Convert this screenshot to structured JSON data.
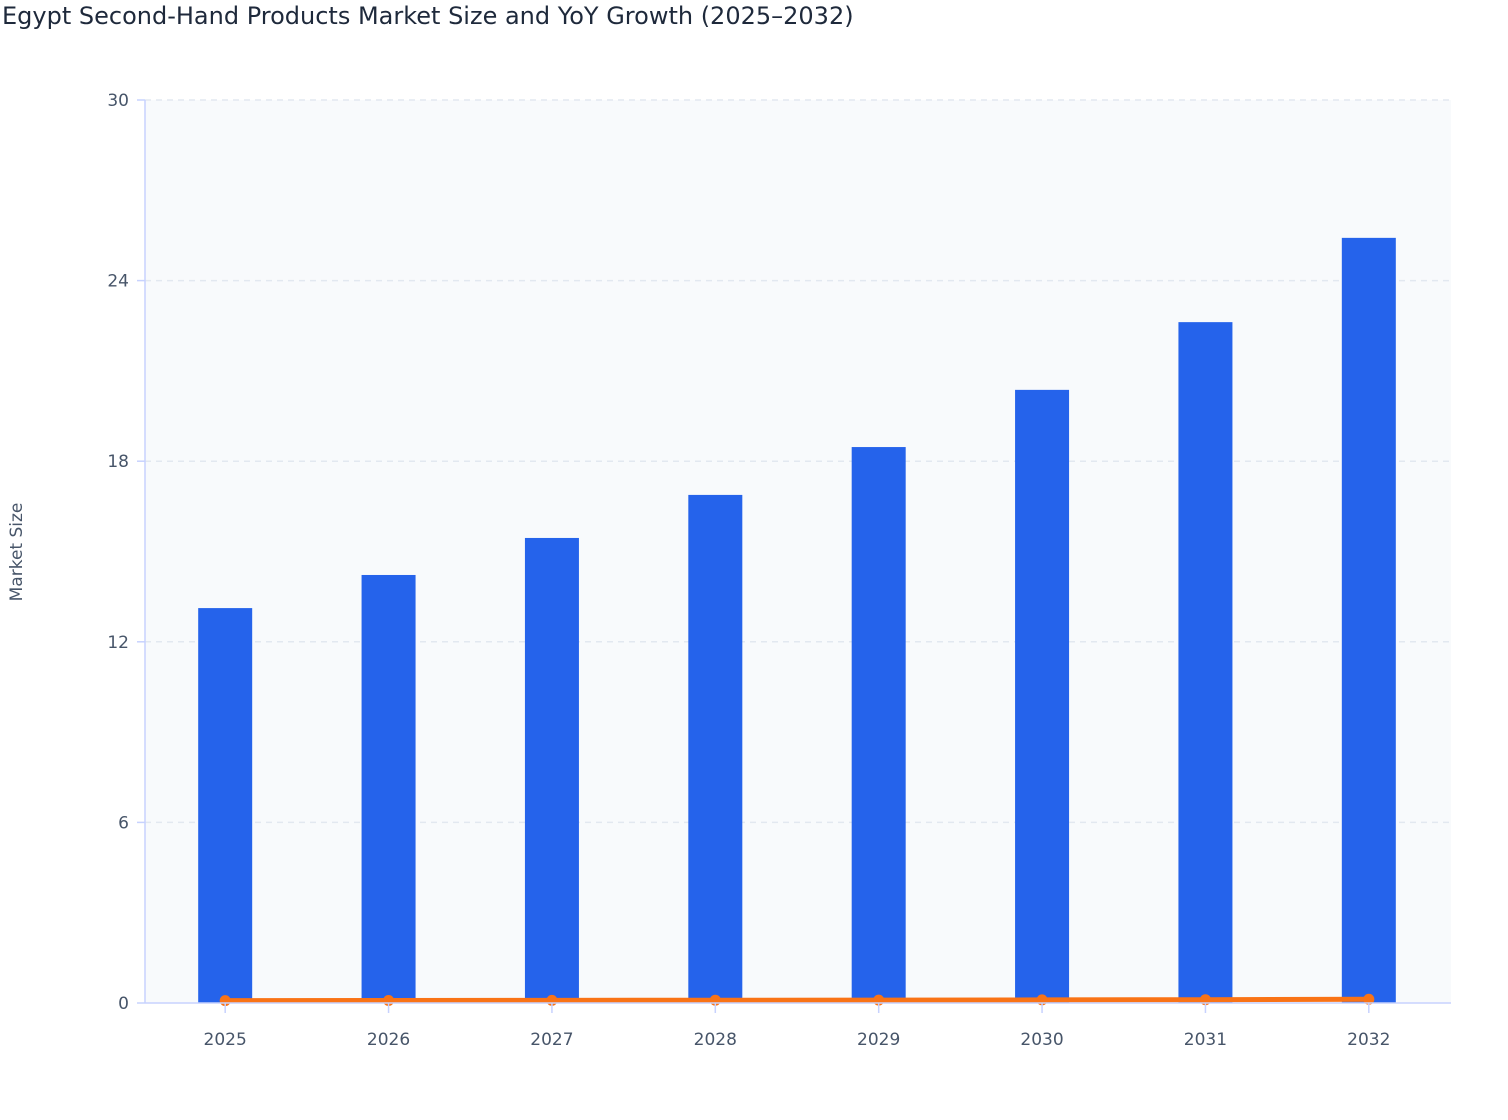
{
  "chart_data": {
    "type": "bar+line",
    "title": "Egypt Second-Hand Products Market Size and YoY Growth (2025–2032)",
    "xlabel": "",
    "ylabel": "Market Size",
    "ylim": [
      0,
      30
    ],
    "yticks": [
      0,
      6,
      12,
      18,
      24,
      30
    ],
    "grid": true,
    "categories": [
      "2025",
      "2026",
      "2027",
      "2028",
      "2029",
      "2030",
      "2031",
      "2032"
    ],
    "series": [
      {
        "type": "bar",
        "color": "#2563eb",
        "values": [
          13.12,
          14.22,
          15.45,
          16.88,
          18.47,
          20.37,
          22.62,
          25.42
        ]
      },
      {
        "type": "line",
        "color": "#f97316",
        "values": [
          0.08,
          0.084,
          0.086,
          0.093,
          0.094,
          0.103,
          0.11,
          0.124
        ]
      }
    ]
  }
}
